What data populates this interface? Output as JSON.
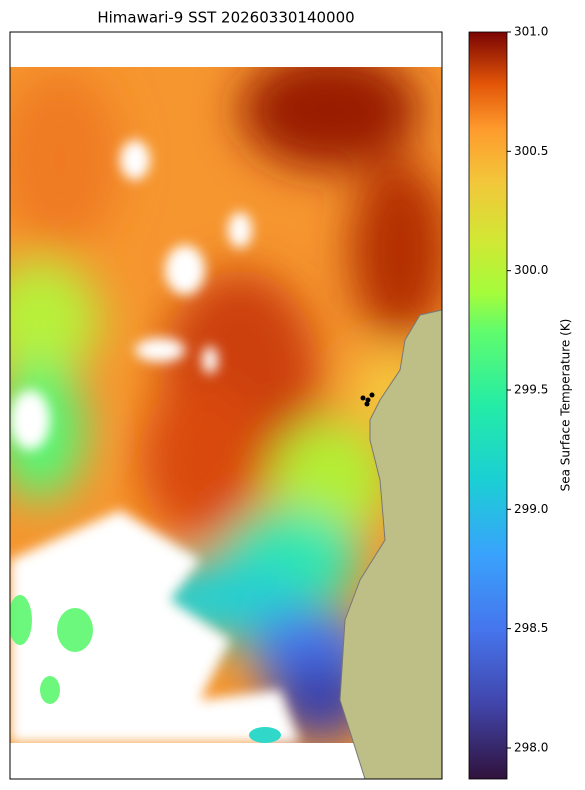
{
  "title": "Himawari-9 SST 20260330140000",
  "colorbar": {
    "label": "Sea Surface Temperature (K)",
    "lim": [
      297.87,
      301.0
    ],
    "ticks": [
      {
        "value": 298,
        "label": "298.0"
      },
      {
        "value": 298.5,
        "label": "298.5"
      },
      {
        "value": 299,
        "label": "299.0"
      },
      {
        "value": 299.5,
        "label": "299.5"
      },
      {
        "value": 300,
        "label": "300.0"
      },
      {
        "value": 300.5,
        "label": "300.5"
      },
      {
        "value": 301,
        "label": "301.0"
      }
    ]
  }
}
